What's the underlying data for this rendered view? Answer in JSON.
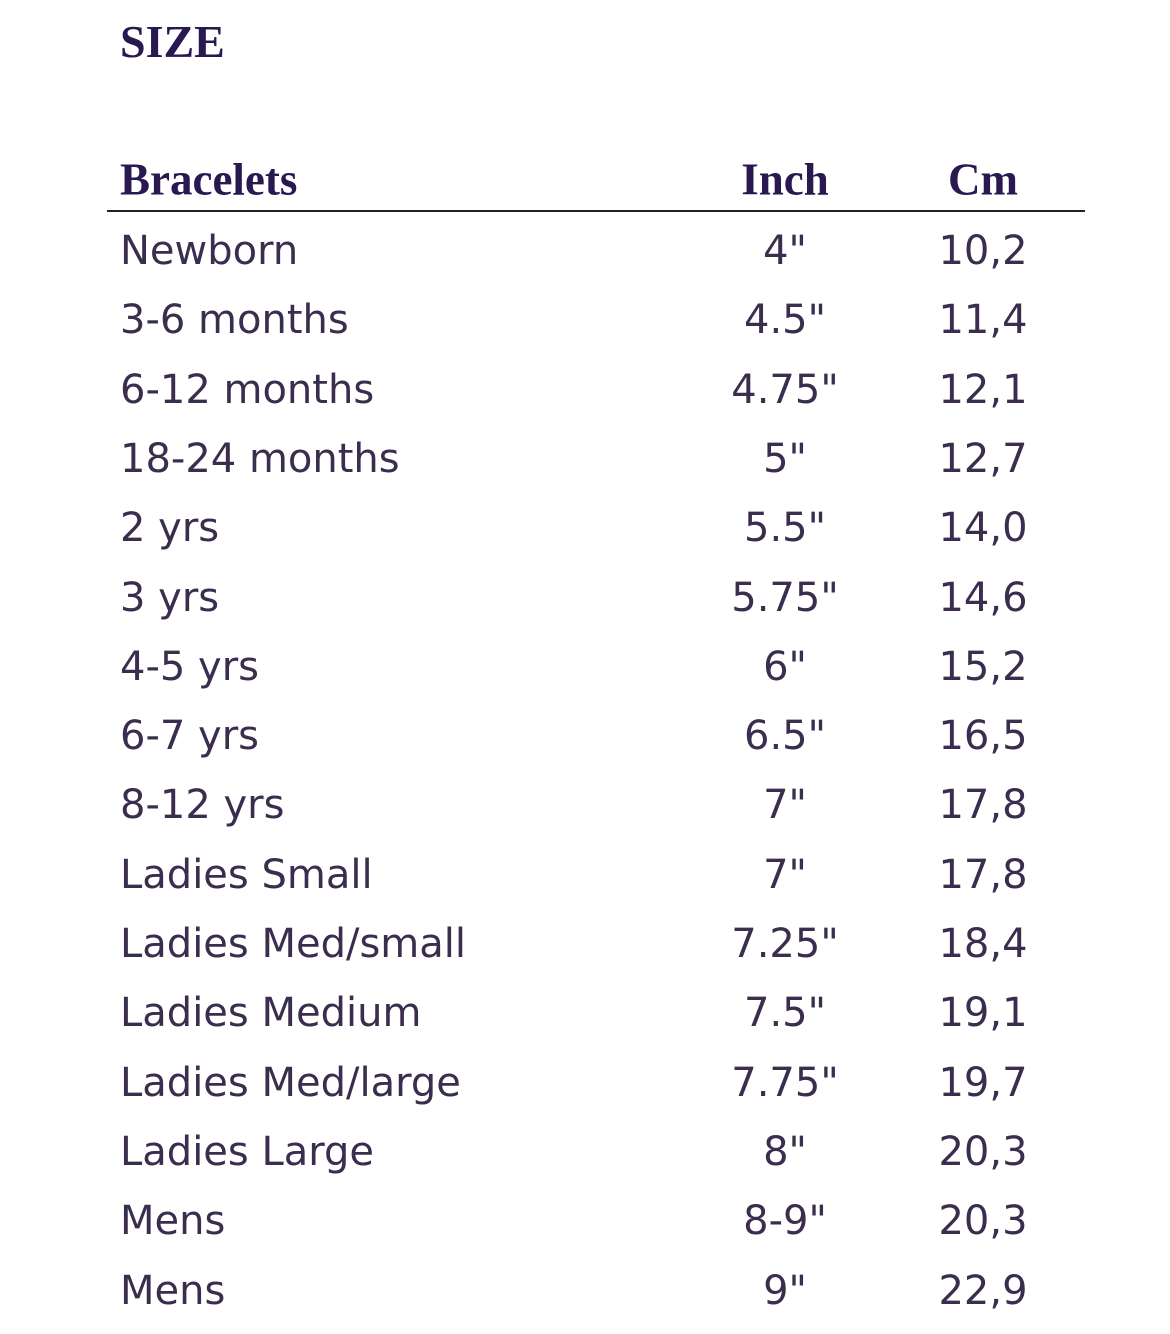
{
  "header": {
    "title": "SIZE"
  },
  "table": {
    "columns": [
      "Bracelets",
      "Inch",
      "Cm"
    ],
    "rows": [
      [
        "Newborn",
        "4\"",
        "10,2"
      ],
      [
        "3-6 months",
        "4.5\"",
        "11,4"
      ],
      [
        "6-12 months",
        "4.75\"",
        "12,1"
      ],
      [
        "18-24 months",
        "5\"",
        "12,7"
      ],
      [
        "2 yrs",
        "5.5\"",
        "14,0"
      ],
      [
        "3 yrs",
        "5.75\"",
        "14,6"
      ],
      [
        "4-5 yrs",
        "6\"",
        "15,2"
      ],
      [
        "6-7 yrs",
        "6.5\"",
        "16,5"
      ],
      [
        "8-12 yrs",
        "7\"",
        "17,8"
      ],
      [
        "Ladies Small",
        "7\"",
        "17,8"
      ],
      [
        "Ladies Med/small",
        "7.25\"",
        "18,4"
      ],
      [
        "Ladies Medium",
        "7.5\"",
        "19,1"
      ],
      [
        "Ladies Med/large",
        "7.75\"",
        "19,7"
      ],
      [
        "Ladies Large",
        "8\"",
        "20,3"
      ],
      [
        "Mens",
        "8-9\"",
        "20,3"
      ],
      [
        "Mens",
        "9\"",
        "22,9"
      ]
    ]
  }
}
